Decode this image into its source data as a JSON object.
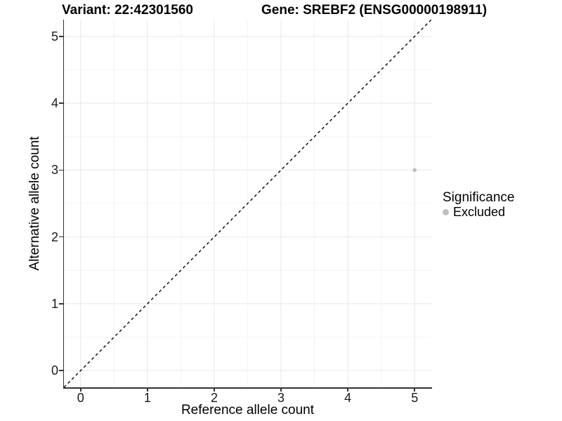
{
  "titles": {
    "variant": "Variant: 22:42301560",
    "gene": "Gene: SREBF2 (ENSG00000198911)"
  },
  "chart_data": {
    "type": "scatter",
    "xlabel": "Reference allele count",
    "ylabel": "Alternative allele count",
    "xlim": [
      -0.25,
      5.25
    ],
    "ylim": [
      -0.25,
      5.25
    ],
    "xticks": [
      0,
      1,
      2,
      3,
      4,
      5
    ],
    "yticks": [
      0,
      1,
      2,
      3,
      4,
      5
    ],
    "xtick_labels": [
      "0",
      "1",
      "2",
      "3",
      "4",
      "5"
    ],
    "ytick_labels": [
      "0",
      "1",
      "2",
      "3",
      "4",
      "5"
    ],
    "minor_ticks": [
      0.5,
      1.5,
      2.5,
      3.5,
      4.5
    ],
    "grid": true,
    "series": [
      {
        "name": "Excluded",
        "points": [
          {
            "x": 5,
            "y": 3
          }
        ],
        "color": "#bebebe"
      }
    ],
    "reference_line": {
      "style": "dashed",
      "color": "#000000",
      "from": [
        -0.25,
        -0.25
      ],
      "to": [
        5.25,
        5.25
      ]
    },
    "legend_position": "right"
  },
  "legend": {
    "title": "Significance",
    "items": [
      {
        "label": "Excluded",
        "color": "#bebebe"
      }
    ]
  },
  "colors": {
    "background": "#ffffff",
    "axis": "#333333",
    "grid_major": "#ebebeb",
    "grid_minor": "#f4f4f4",
    "tick_text": "#1a1a1a",
    "excluded_point": "#bebebe"
  }
}
